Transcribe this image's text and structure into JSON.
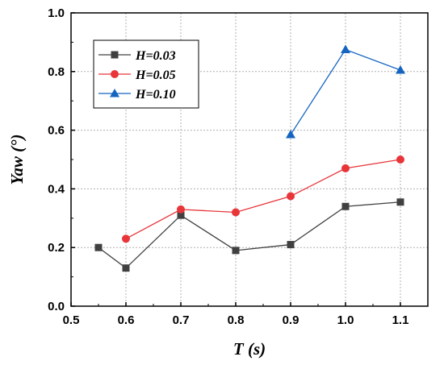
{
  "chart_data": {
    "type": "line",
    "xlabel": "T  (s)",
    "ylabel": "Yaw  (°)",
    "xlim": [
      0.5,
      1.15
    ],
    "ylim": [
      0.0,
      1.0
    ],
    "xticks": [
      "0.5",
      "0.6",
      "0.7",
      "0.8",
      "0.9",
      "1.0",
      "1.1"
    ],
    "yticks": [
      "0.0",
      "0.2",
      "0.4",
      "0.6",
      "0.8",
      "1.0"
    ],
    "grid": true,
    "legend_position": "top-left",
    "series": [
      {
        "name": "H=0.03",
        "color": "#404040",
        "marker": "square",
        "x": [
          0.55,
          0.6,
          0.7,
          0.8,
          0.9,
          1.0,
          1.1
        ],
        "y": [
          0.2,
          0.13,
          0.31,
          0.19,
          0.21,
          0.34,
          0.355
        ]
      },
      {
        "name": "H=0.05",
        "color": "#e8353a",
        "marker": "circle",
        "x": [
          0.6,
          0.7,
          0.8,
          0.9,
          1.0,
          1.1
        ],
        "y": [
          0.23,
          0.33,
          0.32,
          0.375,
          0.47,
          0.5
        ]
      },
      {
        "name": "H=0.10",
        "color": "#1565c0",
        "marker": "triangle",
        "x": [
          0.9,
          1.0,
          1.1
        ],
        "y": [
          0.585,
          0.875,
          0.805
        ]
      }
    ]
  }
}
